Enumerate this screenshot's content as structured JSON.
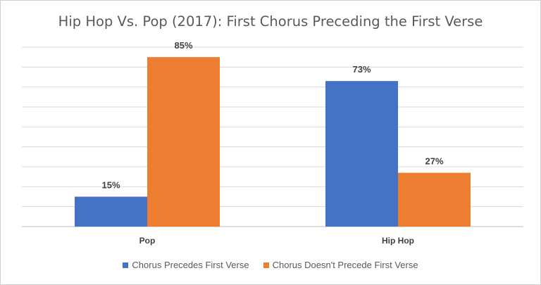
{
  "chart_data": {
    "type": "bar",
    "title": "Hip Hop Vs. Pop (2017): First Chorus Preceding the First Verse",
    "categories": [
      "Pop",
      "Hip Hop"
    ],
    "series": [
      {
        "name": "Chorus Precedes First Verse",
        "values": [
          15,
          73
        ],
        "labels": [
          "15%",
          "73%"
        ],
        "color": "#4472C4"
      },
      {
        "name": "Chorus Doesn't Precede First Verse",
        "values": [
          85,
          27
        ],
        "labels": [
          "85%",
          "27%"
        ],
        "color": "#ED7D31"
      }
    ],
    "ylim": [
      0,
      90
    ],
    "grid": true,
    "legend": "bottom"
  }
}
